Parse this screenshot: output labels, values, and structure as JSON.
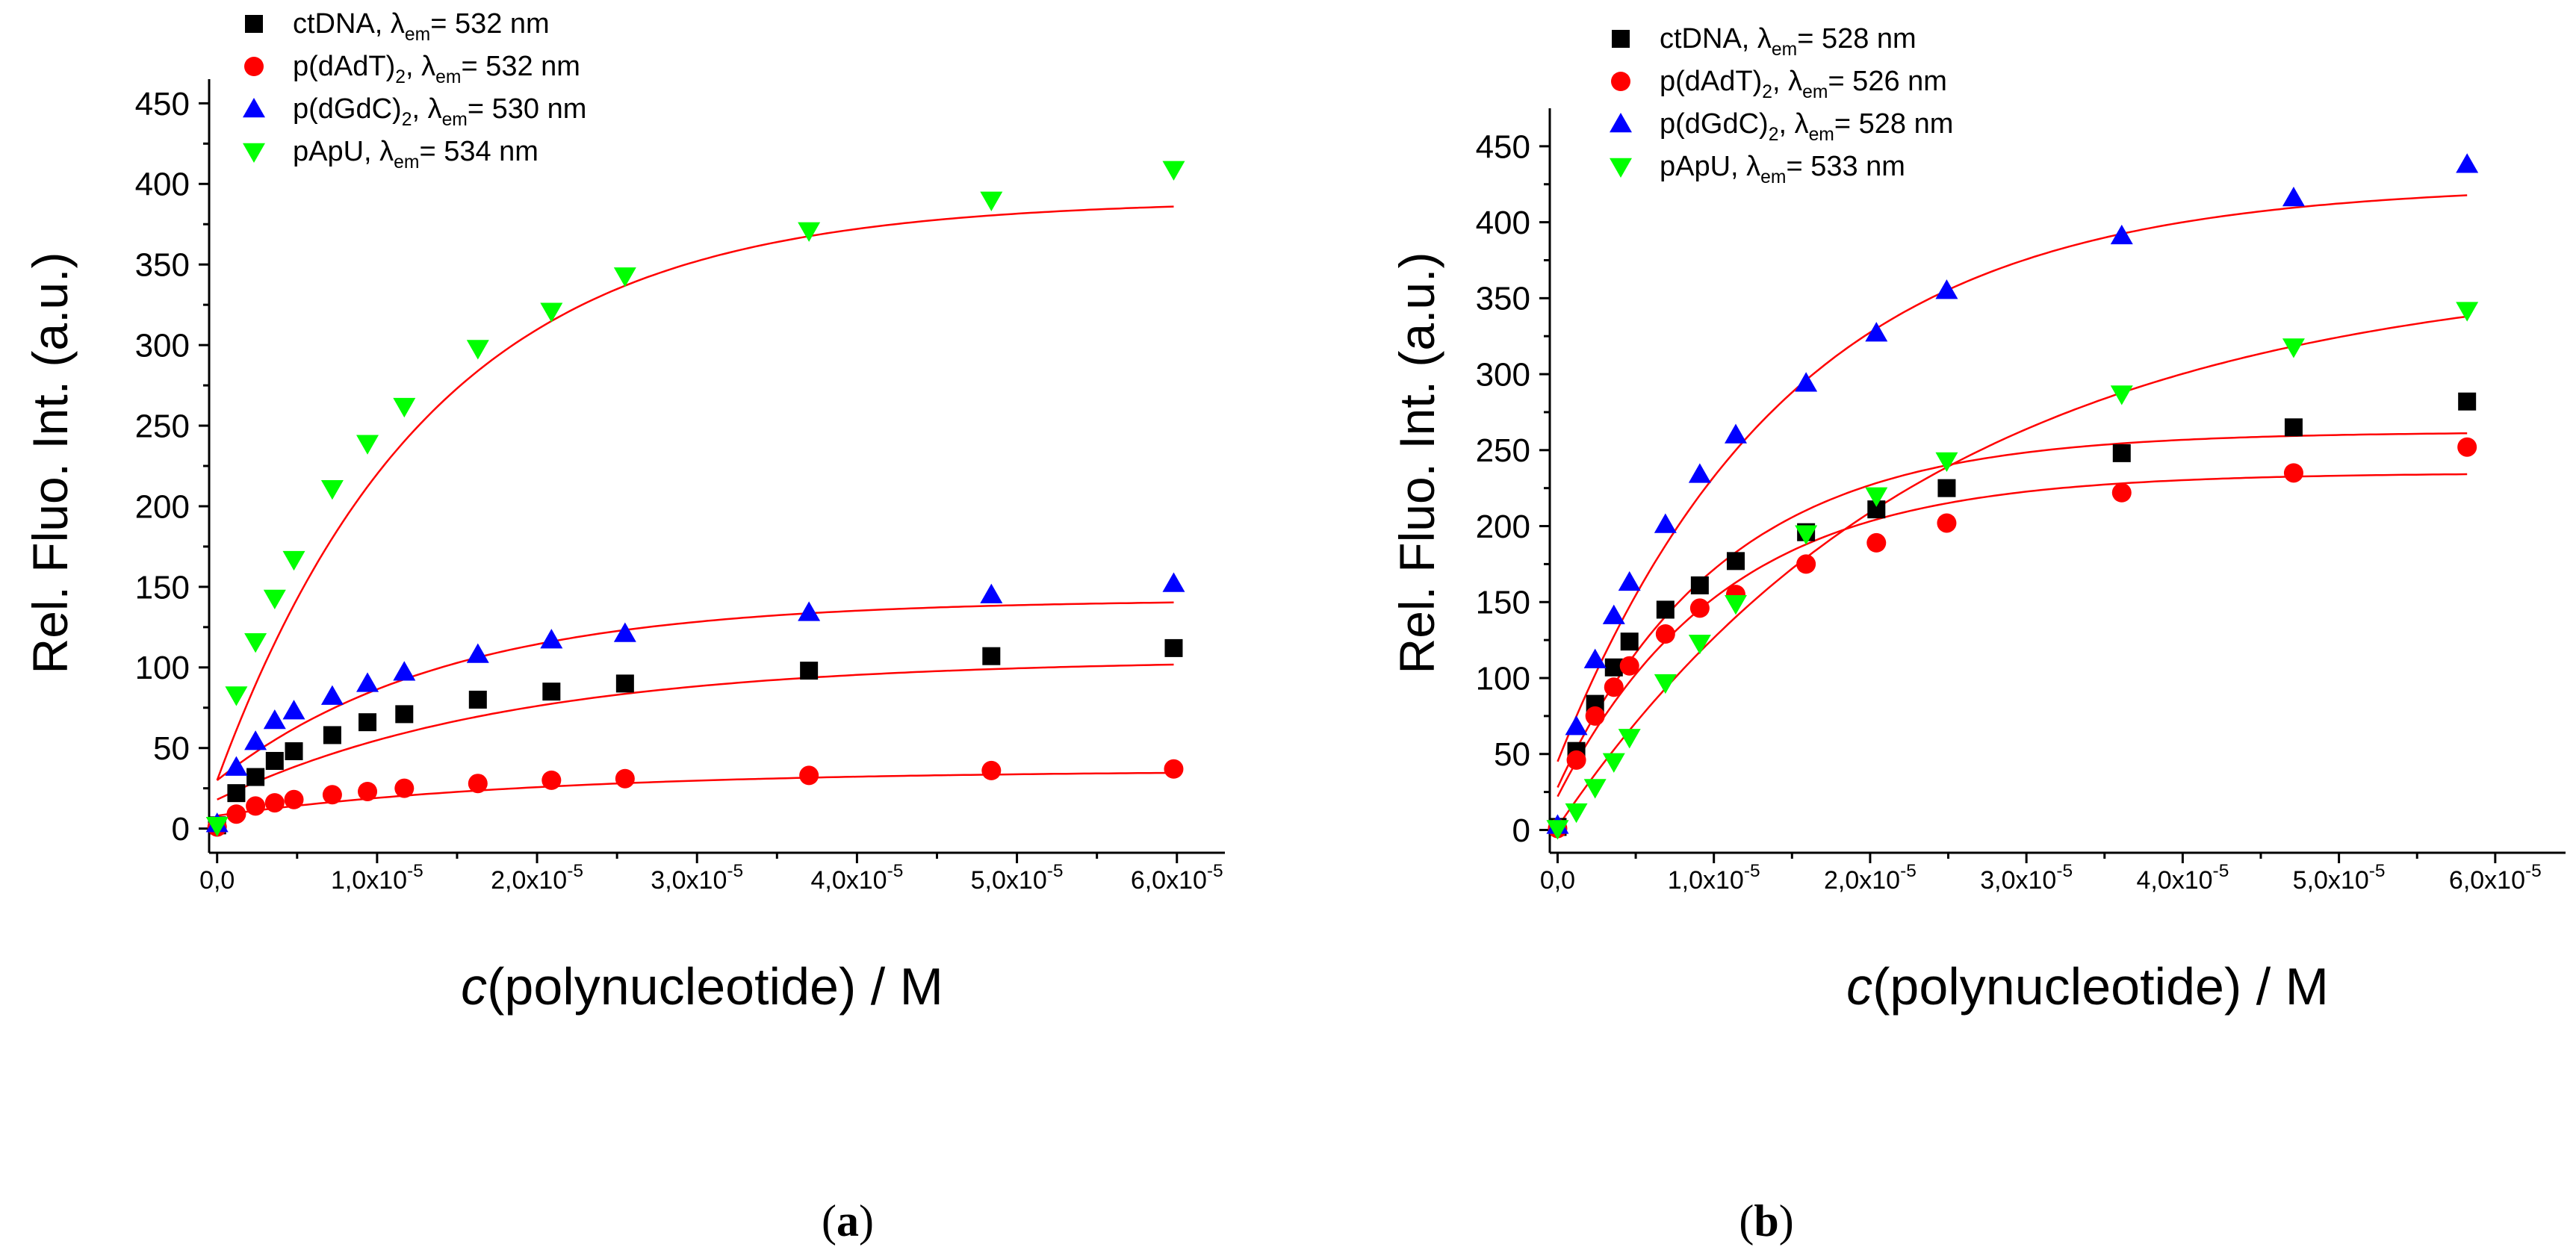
{
  "chart_data": [
    {
      "type": "scatter",
      "panel_label": {
        "open": "(",
        "letter": "a",
        "close": ")"
      },
      "xlabel": {
        "italic": "c",
        "rest": "(polynucleotide) / M"
      },
      "ylabel": "Rel. Fluo. Int. (a.u.)",
      "xlim": [
        -0.05,
        6.3
      ],
      "ylim": [
        -15,
        465
      ],
      "x_unit_exponent": "-5",
      "x_ticks": [
        {
          "value": 0,
          "label": "0,0"
        },
        {
          "value": 1,
          "label": "1,0x10",
          "exp": "-5"
        },
        {
          "value": 2,
          "label": "2,0x10",
          "exp": "-5"
        },
        {
          "value": 3,
          "label": "3,0x10",
          "exp": "-5"
        },
        {
          "value": 4,
          "label": "4,0x10",
          "exp": "-5"
        },
        {
          "value": 5,
          "label": "5,0x10",
          "exp": "-5"
        },
        {
          "value": 6,
          "label": "6,0x10",
          "exp": "-5"
        }
      ],
      "y_ticks": [
        {
          "value": 0,
          "label": "0"
        },
        {
          "value": 50,
          "label": "50"
        },
        {
          "value": 100,
          "label": "100"
        },
        {
          "value": 150,
          "label": "150"
        },
        {
          "value": 200,
          "label": "200"
        },
        {
          "value": 250,
          "label": "250"
        },
        {
          "value": 300,
          "label": "300"
        },
        {
          "value": 350,
          "label": "350"
        },
        {
          "value": 400,
          "label": "400"
        },
        {
          "value": 450,
          "label": "450"
        }
      ],
      "legend": {
        "position": "top-left",
        "entries": [
          {
            "pre": "ctDNA, ",
            "sub1": "",
            "lambda": "λ",
            "sub": "em",
            "post": "= 532 nm"
          },
          {
            "pre": "p(dAdT)",
            "sub1": "2",
            "mid": ", ",
            "lambda": "λ",
            "sub": "em",
            "post": "= 532 nm"
          },
          {
            "pre": "p(dGdC)",
            "sub1": "2",
            "mid": ", ",
            "lambda": "λ",
            "sub": "em",
            "post": "= 530 nm"
          },
          {
            "pre": "pApU, ",
            "sub1": "",
            "lambda": "λ",
            "sub": "em",
            "post": "= 534 nm"
          }
        ]
      },
      "series": [
        {
          "name": "ctDNA",
          "marker": "square",
          "color": "#000000",
          "x": [
            0,
            0.12,
            0.24,
            0.36,
            0.48,
            0.72,
            0.94,
            1.17,
            1.63,
            2.09,
            2.55,
            3.7,
            4.84,
            5.98
          ],
          "y": [
            2,
            22,
            32,
            42,
            48,
            58,
            66,
            71,
            80,
            85,
            90,
            98,
            107,
            112
          ],
          "fit": {
            "y0": 18,
            "ymax": 105,
            "k": 0.55
          }
        },
        {
          "name": "p(dAdT)2",
          "marker": "circle",
          "color": "#ff0000",
          "x": [
            0,
            0.12,
            0.24,
            0.36,
            0.48,
            0.72,
            0.94,
            1.17,
            1.63,
            2.09,
            2.55,
            3.7,
            4.84,
            5.98
          ],
          "y": [
            1,
            9,
            14,
            16,
            18,
            21,
            23,
            25,
            28,
            30,
            31,
            33,
            36,
            37
          ],
          "fit": {
            "y0": 8,
            "ymax": 36,
            "k": 0.5
          }
        },
        {
          "name": "p(dGdC)2",
          "marker": "triangle-up",
          "color": "#0000ff",
          "x": [
            0,
            0.12,
            0.24,
            0.36,
            0.48,
            0.72,
            0.94,
            1.17,
            1.63,
            2.09,
            2.55,
            3.7,
            4.84,
            5.98
          ],
          "y": [
            3,
            38,
            54,
            67,
            73,
            82,
            90,
            97,
            108,
            117,
            121,
            134,
            145,
            152
          ],
          "fit": {
            "y0": 30,
            "ymax": 142,
            "k": 0.7
          }
        },
        {
          "name": "pApU",
          "marker": "triangle-down",
          "color": "#00ff00",
          "x": [
            0,
            0.12,
            0.24,
            0.36,
            0.48,
            0.72,
            0.94,
            1.17,
            1.63,
            2.09,
            2.55,
            3.7,
            4.84,
            5.98
          ],
          "y": [
            2,
            83,
            116,
            143,
            167,
            211,
            239,
            262,
            298,
            321,
            343,
            371,
            390,
            409
          ],
          "fit": {
            "y0": 30,
            "ymax": 390,
            "k": 0.75
          }
        }
      ]
    },
    {
      "type": "scatter",
      "panel_label": {
        "open": "(",
        "letter": "b",
        "close": ")"
      },
      "xlabel": {
        "italic": "c",
        "rest": "(polynucleotide) / M"
      },
      "ylabel": "Rel. Fluo. Int. (a.u.)",
      "xlim": [
        -0.05,
        6.45
      ],
      "ylim": [
        -15,
        475
      ],
      "x_unit_exponent": "-5",
      "x_ticks": [
        {
          "value": 0,
          "label": "0,0"
        },
        {
          "value": 1,
          "label": "1,0x10",
          "exp": "-5"
        },
        {
          "value": 2,
          "label": "2,0x10",
          "exp": "-5"
        },
        {
          "value": 3,
          "label": "3,0x10",
          "exp": "-5"
        },
        {
          "value": 4,
          "label": "4,0x10",
          "exp": "-5"
        },
        {
          "value": 5,
          "label": "5,0x10",
          "exp": "-5"
        },
        {
          "value": 6,
          "label": "6,0x10",
          "exp": "-5"
        }
      ],
      "y_ticks": [
        {
          "value": 0,
          "label": "0"
        },
        {
          "value": 50,
          "label": "50"
        },
        {
          "value": 100,
          "label": "100"
        },
        {
          "value": 150,
          "label": "150"
        },
        {
          "value": 200,
          "label": "200"
        },
        {
          "value": 250,
          "label": "250"
        },
        {
          "value": 300,
          "label": "300"
        },
        {
          "value": 350,
          "label": "350"
        },
        {
          "value": 400,
          "label": "400"
        },
        {
          "value": 450,
          "label": "450"
        }
      ],
      "legend": {
        "position": "top-left",
        "entries": [
          {
            "pre": "ctDNA, ",
            "sub1": "",
            "lambda": "λ",
            "sub": "em",
            "post": "= 528 nm"
          },
          {
            "pre": " p(dAdT)",
            "sub1": "2",
            "mid": ", ",
            "lambda": "λ",
            "sub": "em",
            "post": "= 526 nm"
          },
          {
            "pre": "p(dGdC)",
            "sub1": "2",
            "mid": ", ",
            "lambda": "λ",
            "sub": "em",
            "post": "= 528 nm"
          },
          {
            "pre": "pApU, ",
            "sub1": "",
            "lambda": "λ",
            "sub": "em",
            "post": "= 533 nm"
          }
        ]
      },
      "series": [
        {
          "name": "ctDNA",
          "marker": "square",
          "color": "#000000",
          "x": [
            0,
            0.12,
            0.24,
            0.36,
            0.46,
            0.69,
            0.91,
            1.14,
            1.59,
            2.04,
            2.49,
            3.61,
            4.71,
            5.82
          ],
          "y": [
            2,
            52,
            83,
            107,
            124,
            145,
            161,
            177,
            196,
            211,
            225,
            248,
            265,
            282
          ],
          "fit": {
            "y0": 28,
            "ymax": 262,
            "k": 0.95
          }
        },
        {
          "name": "p(dAdT)2",
          "marker": "circle",
          "color": "#ff0000",
          "x": [
            0,
            0.12,
            0.24,
            0.36,
            0.46,
            0.69,
            0.91,
            1.14,
            1.59,
            2.04,
            2.49,
            3.61,
            4.71,
            5.82
          ],
          "y": [
            1,
            46,
            75,
            94,
            108,
            129,
            146,
            155,
            175,
            189,
            202,
            222,
            235,
            252
          ],
          "fit": {
            "y0": 22,
            "ymax": 235,
            "k": 0.95
          }
        },
        {
          "name": "p(dGdC)2",
          "marker": "triangle-up",
          "color": "#0000ff",
          "x": [
            0,
            0.12,
            0.24,
            0.36,
            0.46,
            0.69,
            0.91,
            1.14,
            1.59,
            2.04,
            2.49,
            3.61,
            4.71,
            5.82
          ],
          "y": [
            3,
            68,
            112,
            141,
            163,
            201,
            234,
            260,
            294,
            327,
            355,
            391,
            416,
            438
          ],
          "fit": {
            "y0": 45,
            "ymax": 425,
            "k": 0.68
          }
        },
        {
          "name": "pApU",
          "marker": "triangle-down",
          "color": "#00ff00",
          "x": [
            0,
            0.12,
            0.24,
            0.36,
            0.46,
            0.69,
            0.91,
            1.14,
            1.59,
            2.04,
            2.49,
            3.61,
            4.71,
            5.82
          ],
          "y": [
            1,
            12,
            28,
            45,
            61,
            97,
            123,
            149,
            195,
            220,
            243,
            287,
            318,
            342
          ],
          "fit": {
            "y0": 2,
            "ymax": 372,
            "k": 0.41
          }
        }
      ]
    }
  ]
}
